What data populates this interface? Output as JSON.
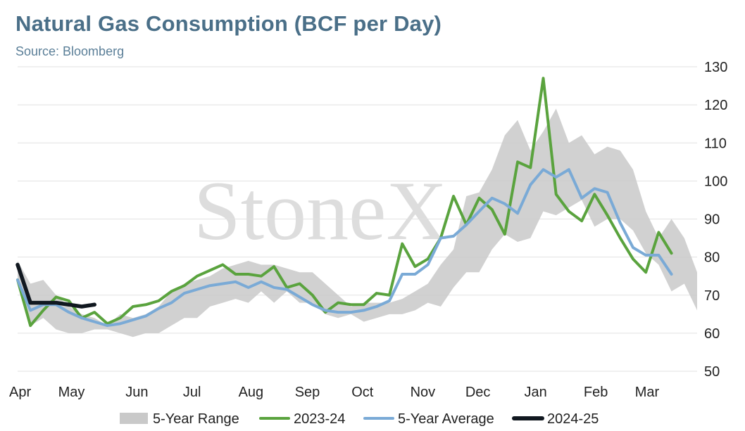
{
  "header": {
    "title": "Natural Gas Consumption (BCF per Day)",
    "subtitle": "Source: Bloomberg"
  },
  "watermark": "StoneX",
  "chart_data": {
    "type": "line",
    "title": "Natural Gas Consumption (BCF per Day)",
    "xlabel": "",
    "ylabel": "",
    "ylim": [
      50,
      130
    ],
    "yticks": [
      50,
      60,
      70,
      80,
      90,
      100,
      110,
      120,
      130
    ],
    "y_axis_side": "right",
    "grid": true,
    "legend_position": "bottom",
    "x_tick_labels": [
      {
        "label": "Apr",
        "week": 0
      },
      {
        "label": "May",
        "week": 4.2
      },
      {
        "label": "Jun",
        "week": 9.3
      },
      {
        "label": "Jul",
        "week": 13.6
      },
      {
        "label": "Aug",
        "week": 18.2
      },
      {
        "label": "Sep",
        "week": 22.6
      },
      {
        "label": "Oct",
        "week": 26.9
      },
      {
        "label": "Nov",
        "week": 31.6
      },
      {
        "label": "Dec",
        "week": 35.9
      },
      {
        "label": "Jan",
        "week": 40.4
      },
      {
        "label": "Feb",
        "week": 45.1
      },
      {
        "label": "Mar",
        "week": 49.1
      }
    ],
    "range": {
      "name": "5-Year Range",
      "color": "#c9c9c9",
      "upper": [
        79,
        73,
        74,
        70,
        67,
        65,
        64,
        62,
        65,
        64,
        65,
        67,
        71,
        73,
        74,
        75,
        77,
        78,
        79,
        78,
        78,
        77,
        76,
        76,
        73,
        70,
        67,
        68,
        68,
        68,
        69,
        71,
        73,
        78,
        82,
        96,
        97,
        103,
        112,
        116,
        108,
        113,
        119,
        110,
        112,
        107,
        109,
        108,
        103,
        92,
        85,
        90,
        85,
        76
      ],
      "lower": [
        74,
        62,
        64,
        61,
        60,
        60,
        61,
        61,
        60,
        59,
        60,
        60,
        62,
        64,
        64,
        67,
        68,
        69,
        68,
        71,
        68,
        71,
        68,
        68,
        65,
        64,
        65,
        63,
        64,
        65,
        65,
        66,
        68,
        67,
        72,
        76,
        76,
        82,
        86,
        84,
        85,
        92,
        91,
        93,
        95,
        88,
        90,
        90,
        87,
        81,
        78,
        71,
        73,
        66
      ]
    },
    "series": [
      {
        "name": "2023-24",
        "color": "#5aa33e",
        "values": [
          74,
          62,
          66,
          69.5,
          68.5,
          64,
          65.5,
          62.5,
          64,
          67,
          67.5,
          68.5,
          71,
          72.5,
          75,
          76.5,
          78,
          75.5,
          75.5,
          75,
          77.5,
          72,
          73,
          70,
          65.5,
          68,
          67.5,
          67.5,
          70.5,
          70,
          83.5,
          77.5,
          79.5,
          85,
          96,
          88.5,
          95.5,
          92.5,
          86,
          105,
          103.5,
          127,
          96.5,
          92,
          89.5,
          96.5,
          91,
          85,
          79.5,
          76,
          86.5,
          81
        ]
      },
      {
        "name": "5-Year Average",
        "color": "#7aaad6",
        "values": [
          74,
          66,
          67.5,
          67.5,
          65.5,
          64,
          63,
          62,
          62.5,
          63.5,
          64.5,
          66.5,
          68,
          70.5,
          71.5,
          72.5,
          73,
          73.5,
          72,
          73.5,
          72,
          71.5,
          69.5,
          67.5,
          66,
          65.5,
          65.5,
          66,
          67,
          68.5,
          75.5,
          75.5,
          78,
          85,
          85.5,
          88.5,
          92,
          95.5,
          94,
          91.5,
          99,
          103,
          101,
          103,
          95.5,
          98,
          97,
          89,
          82.5,
          80.5,
          80.5,
          75.5
        ]
      },
      {
        "name": "2024-25",
        "color": "#111820",
        "values": [
          78,
          68,
          68,
          68,
          67.5,
          67,
          67.5
        ]
      }
    ]
  },
  "legend": [
    {
      "label": "5-Year Range",
      "type": "area",
      "color": "#c9c9c9"
    },
    {
      "label": "2023-24",
      "type": "line",
      "color": "#5aa33e"
    },
    {
      "label": "5-Year Average",
      "type": "line",
      "color": "#7aaad6"
    },
    {
      "label": "2024-25",
      "type": "line",
      "color": "#111820"
    }
  ]
}
